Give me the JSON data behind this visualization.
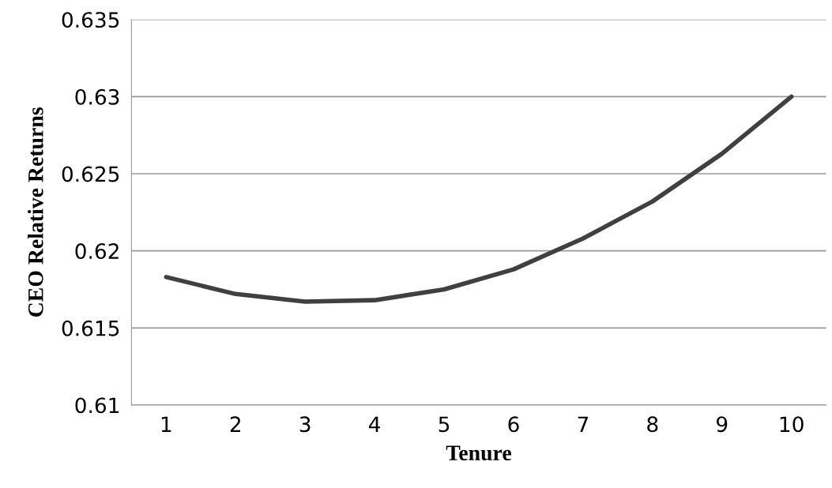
{
  "chart_data": {
    "type": "line",
    "xlabel": "Tenure",
    "ylabel": "CEO Relative Returns",
    "categories": [
      "1",
      "2",
      "3",
      "4",
      "5",
      "6",
      "7",
      "8",
      "9",
      "10"
    ],
    "series": [
      {
        "color": "#404040",
        "values": [
          0.6183,
          0.6172,
          0.6167,
          0.6168,
          0.6175,
          0.6188,
          0.6208,
          0.6232,
          0.6263,
          0.63
        ]
      }
    ],
    "ylim": [
      0.61,
      0.635
    ],
    "yticks": [
      0.61,
      0.615,
      0.62,
      0.625,
      0.63,
      0.635
    ],
    "grid": "y",
    "marker": "none",
    "line_style": "solid"
  }
}
